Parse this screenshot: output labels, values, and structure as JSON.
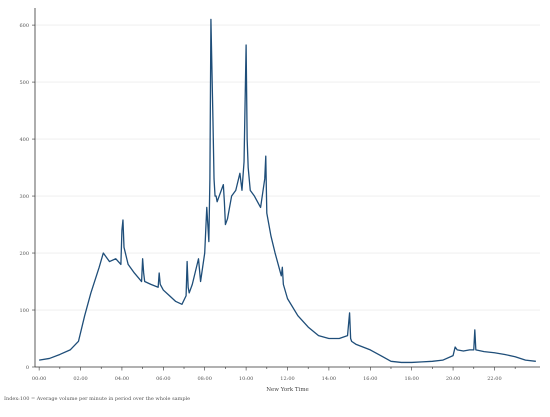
{
  "colors": {
    "line": "#1f4e79",
    "grid": "#e6e6e6",
    "axis": "#333333"
  },
  "note": "Index:100 = Average volume per minute in period over the whole sample",
  "chart_data": {
    "type": "line",
    "xlabel": "New York Time",
    "ylabel": "",
    "title": "",
    "x_unit": "hours",
    "xlim": [
      -0.2,
      24.2
    ],
    "ylim": [
      0,
      630
    ],
    "x_ticks": [
      0,
      2,
      4,
      6,
      8,
      10,
      12,
      14,
      16,
      18,
      20,
      22
    ],
    "x_tick_labels": [
      "00:00",
      "02:00",
      "04:00",
      "06:00",
      "08:00",
      "10:00",
      "12:00",
      "14:00",
      "16:00",
      "18:00",
      "20:00",
      "22:00"
    ],
    "y_ticks": [
      0,
      100,
      200,
      300,
      400,
      500,
      600
    ],
    "y_tick_labels": [
      "0",
      "100",
      "200",
      "300",
      "400",
      "500",
      "600"
    ],
    "grid": "horizontal",
    "series": [
      {
        "x": [
          0,
          0.5,
          1,
          1.5,
          1.9,
          2.2,
          2.5,
          2.9,
          3.1,
          3.4,
          3.7,
          3.95,
          4.0,
          4.05,
          4.1,
          4.3,
          4.6,
          4.95,
          5.0,
          5.05,
          5.1,
          5.4,
          5.75,
          5.8,
          5.85,
          6,
          6.3,
          6.6,
          6.9,
          7.1,
          7.15,
          7.2,
          7.25,
          7.4,
          7.7,
          7.8,
          7.9,
          8.0,
          8.1,
          8.2,
          8.25,
          8.3,
          8.4,
          8.45,
          8.5,
          8.55,
          8.6,
          8.7,
          8.9,
          8.95,
          9.0,
          9.1,
          9.3,
          9.5,
          9.7,
          9.8,
          9.9,
          10.0,
          10.05,
          10.1,
          10.2,
          10.4,
          10.7,
          10.9,
          10.95,
          11.0,
          11.2,
          11.4,
          11.7,
          11.75,
          11.8,
          12,
          12.5,
          13,
          13.5,
          14,
          14.5,
          14.9,
          15.0,
          15.05,
          15.1,
          15.3,
          16,
          16.5,
          17,
          17.5,
          18,
          18.5,
          19,
          19.5,
          20,
          20.1,
          20.2,
          20.5,
          20.8,
          21.0,
          21.05,
          21.1,
          21.5,
          22,
          22.5,
          23,
          23.5,
          24
        ],
        "y": [
          12,
          15,
          22,
          30,
          45,
          90,
          130,
          175,
          200,
          185,
          190,
          180,
          240,
          258,
          210,
          180,
          165,
          150,
          190,
          165,
          150,
          145,
          140,
          165,
          145,
          135,
          125,
          115,
          110,
          125,
          185,
          140,
          130,
          145,
          190,
          150,
          175,
          200,
          280,
          220,
          330,
          610,
          430,
          330,
          300,
          300,
          290,
          300,
          320,
          290,
          250,
          260,
          300,
          310,
          340,
          310,
          360,
          565,
          400,
          350,
          310,
          300,
          280,
          330,
          370,
          270,
          230,
          200,
          160,
          175,
          145,
          120,
          90,
          70,
          55,
          50,
          50,
          55,
          95,
          50,
          45,
          40,
          30,
          20,
          10,
          8,
          8,
          9,
          10,
          12,
          20,
          35,
          30,
          28,
          30,
          30,
          65,
          30,
          27,
          25,
          22,
          18,
          12,
          10
        ]
      }
    ]
  }
}
